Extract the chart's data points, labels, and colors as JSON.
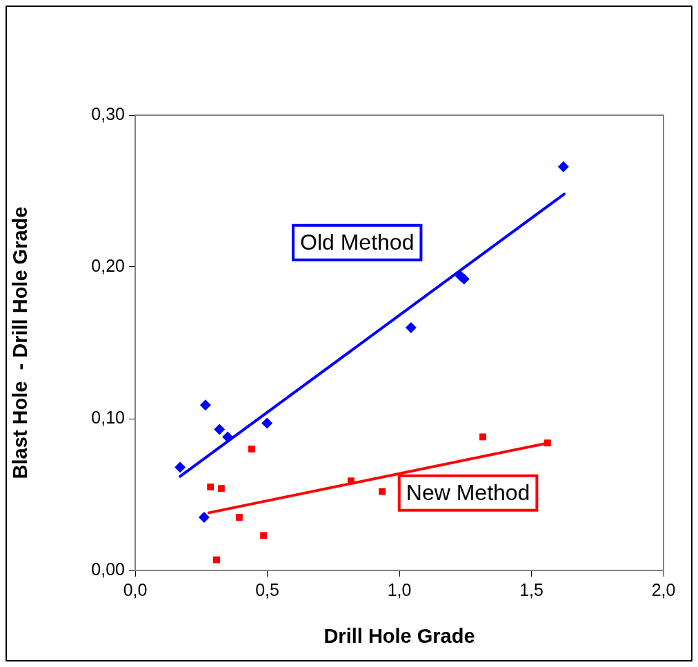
{
  "chart_data": {
    "type": "scatter",
    "xlabel": "Drill Hole Grade",
    "ylabel": "Blast Hole  - Drill Hole Grade",
    "xlim": [
      0,
      2
    ],
    "xticks": [
      {
        "value": 0,
        "label": "0,0"
      },
      {
        "value": 0.5,
        "label": "0,5"
      },
      {
        "value": 1,
        "label": "1,0"
      },
      {
        "value": 1.5,
        "label": "1,5"
      },
      {
        "value": 2,
        "label": "2,0"
      }
    ],
    "ylim": [
      0,
      0.3
    ],
    "yticks": [
      {
        "value": 0,
        "label": "0,00"
      },
      {
        "value": 0.1,
        "label": "0,10"
      },
      {
        "value": 0.2,
        "label": "0,20"
      },
      {
        "value": 0.3,
        "label": "0,30"
      }
    ],
    "grid": false,
    "legend": false,
    "series": [
      {
        "name": "Old Method",
        "marker": "diamond",
        "color": "#0000ff",
        "x": [
          0.17,
          0.266,
          0.319,
          0.35,
          0.499,
          0.261,
          1.044,
          1.232,
          1.245,
          1.621
        ],
        "values": [
          0.068,
          0.109,
          0.093,
          0.088,
          0.097,
          0.035,
          0.16,
          0.194,
          0.192,
          0.266
        ]
      },
      {
        "name": "New Method",
        "marker": "square",
        "color": "#ff0000",
        "x": [
          0.441,
          0.285,
          0.326,
          0.394,
          0.486,
          0.308,
          0.817,
          0.935,
          1.316,
          1.561
        ],
        "values": [
          0.08,
          0.055,
          0.054,
          0.035,
          0.023,
          0.007,
          0.059,
          0.052,
          0.088,
          0.084
        ]
      },
      {
        "type": "line",
        "marker": "none",
        "line_style": "solid",
        "color": "#0000ff",
        "x": [
          0.17,
          1.624
        ],
        "values": [
          0.062,
          0.248
        ]
      },
      {
        "type": "line",
        "marker": "none",
        "line_style": "solid",
        "color": "#ff0000",
        "x": [
          0.279,
          1.564
        ],
        "values": [
          0.038,
          0.084
        ]
      }
    ]
  }
}
